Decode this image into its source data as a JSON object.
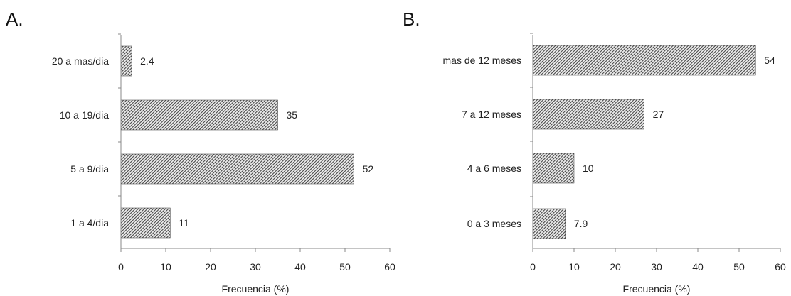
{
  "chart_data": [
    {
      "panel": "A.",
      "type": "bar",
      "orientation": "horizontal",
      "categories": [
        "20 a mas/dia",
        "10 a 19/dia",
        "5 a 9/dia",
        "1 a 4/dia"
      ],
      "values": [
        2.4,
        35,
        52,
        11
      ],
      "value_labels": [
        "2.4",
        "35",
        "52",
        "11"
      ],
      "xlabel": "Frecuencia (%)",
      "ylabel": "",
      "xlim": [
        0,
        60
      ],
      "xticks": [
        0,
        10,
        20,
        30,
        40,
        50,
        60
      ],
      "grid": false,
      "bar_pattern": "diagonal-hatch",
      "bar_color": "#444444"
    },
    {
      "panel": "B.",
      "type": "bar",
      "orientation": "horizontal",
      "categories": [
        "mas de 12 meses",
        "7 a 12 meses",
        "4 a 6 meses",
        "0 a 3 meses"
      ],
      "values": [
        54,
        27,
        10,
        7.9
      ],
      "value_labels": [
        "54",
        "27",
        "10",
        "7.9"
      ],
      "xlabel": "Frecuencia (%)",
      "ylabel": "",
      "xlim": [
        0,
        60
      ],
      "xticks": [
        0,
        10,
        20,
        30,
        40,
        50,
        60
      ],
      "grid": false,
      "bar_pattern": "diagonal-hatch",
      "bar_color": "#444444"
    }
  ]
}
